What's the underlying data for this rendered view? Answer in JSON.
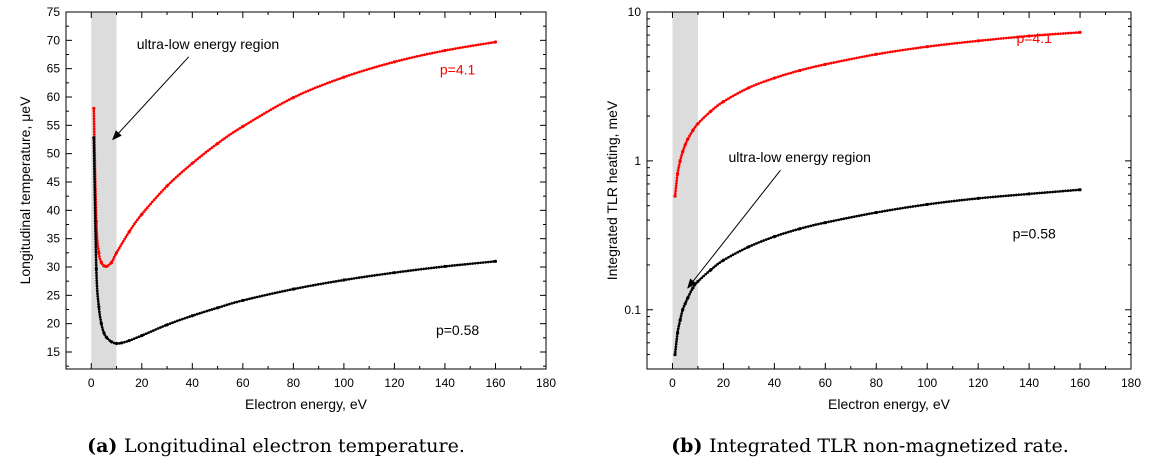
{
  "chart_data": [
    {
      "type": "line",
      "caption_tag": "(a)",
      "caption": "Longitudinal electron temperature.",
      "xlabel": "Electron energy, eV",
      "ylabel": "Longitudinal temperature, μeV",
      "xlim": [
        -10,
        180
      ],
      "ylim": [
        12,
        75
      ],
      "xticks": [
        0,
        20,
        40,
        60,
        80,
        100,
        120,
        140,
        160,
        180
      ],
      "yticks": [
        15,
        20,
        25,
        30,
        35,
        40,
        45,
        50,
        55,
        60,
        65,
        70,
        75
      ],
      "yscale": "linear",
      "shaded_region": [
        0,
        10
      ],
      "annotation": {
        "text": "ultra-low energy region",
        "at": [
          8.5,
          52.5
        ],
        "text_pos": [
          18,
          68.5
        ]
      },
      "series": [
        {
          "name": "p=4.1",
          "color": "#ff0000",
          "label_pos": [
            145,
            64
          ],
          "x": [
            1,
            2,
            3,
            4,
            5,
            6,
            8,
            10,
            15,
            20,
            30,
            40,
            50,
            60,
            80,
            100,
            120,
            140,
            160
          ],
          "y": [
            58,
            38,
            32.5,
            30.8,
            30.2,
            30.1,
            30.8,
            32.5,
            36.2,
            39.3,
            44.3,
            48.3,
            51.8,
            54.8,
            59.9,
            63.5,
            66.2,
            68.2,
            69.7
          ]
        },
        {
          "name": "p=0.58",
          "color": "#000000",
          "label_pos": [
            145,
            18
          ],
          "x": [
            1,
            2,
            3,
            4,
            5,
            6,
            8,
            10,
            12,
            15,
            20,
            30,
            40,
            50,
            60,
            80,
            100,
            120,
            140,
            160
          ],
          "y": [
            52.8,
            29.7,
            23,
            20,
            18.4,
            17.6,
            16.8,
            16.5,
            16.6,
            17,
            17.9,
            19.8,
            21.4,
            22.8,
            24.1,
            26.1,
            27.7,
            29,
            30.1,
            31
          ]
        }
      ]
    },
    {
      "type": "line",
      "caption_tag": "(b)",
      "caption": "Integrated TLR non-magnetized rate.",
      "xlabel": "Electron energy, eV",
      "ylabel": "Integrated TLR heating, meV",
      "xlim": [
        -10,
        180
      ],
      "ylim": [
        0.04,
        10
      ],
      "xticks": [
        0,
        20,
        40,
        60,
        80,
        100,
        120,
        140,
        160,
        180
      ],
      "yticks": [
        0.1,
        1,
        10
      ],
      "ytick_labels": [
        "0.1",
        "1",
        "10"
      ],
      "yscale": "log",
      "shaded_region": [
        0,
        10
      ],
      "annotation": {
        "text": "ultra-low energy region",
        "at": [
          6,
          0.14
        ],
        "text_pos": [
          22,
          0.98
        ]
      },
      "series": [
        {
          "name": "p=4.1",
          "color": "#ff0000",
          "label_pos": [
            142,
            6.2
          ],
          "x": [
            1,
            2,
            3,
            4,
            5,
            6,
            8,
            10,
            15,
            20,
            30,
            40,
            50,
            60,
            80,
            100,
            120,
            140,
            160
          ],
          "y": [
            0.58,
            0.82,
            1.0,
            1.15,
            1.28,
            1.4,
            1.6,
            1.78,
            2.15,
            2.5,
            3.1,
            3.6,
            4.05,
            4.45,
            5.2,
            5.85,
            6.4,
            6.9,
            7.3
          ]
        },
        {
          "name": "p=0.58",
          "color": "#000000",
          "label_pos": [
            142,
            0.3
          ],
          "x": [
            1,
            2,
            3,
            4,
            5,
            6,
            8,
            10,
            15,
            20,
            30,
            40,
            50,
            60,
            80,
            100,
            120,
            140,
            160
          ],
          "y": [
            0.05,
            0.07,
            0.085,
            0.1,
            0.11,
            0.12,
            0.14,
            0.155,
            0.185,
            0.215,
            0.265,
            0.31,
            0.35,
            0.385,
            0.45,
            0.51,
            0.56,
            0.6,
            0.64
          ]
        }
      ]
    }
  ]
}
